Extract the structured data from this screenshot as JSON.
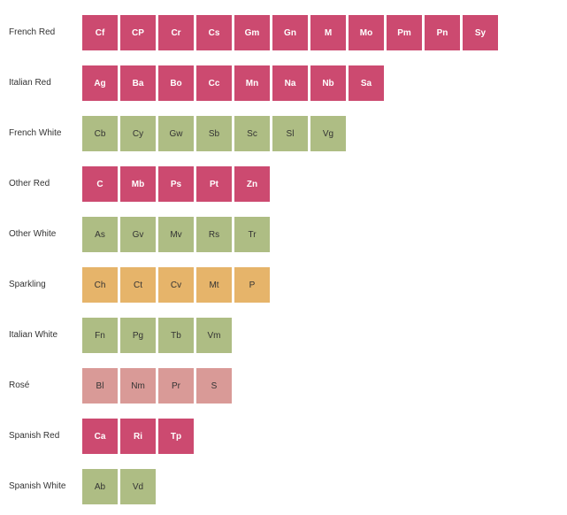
{
  "chart_data": {
    "type": "table",
    "rows": [
      {
        "label": "French Red",
        "category": "red",
        "items": [
          "Cf",
          "CP",
          "Cr",
          "Cs",
          "Gm",
          "Gn",
          "M",
          "Mo",
          "Pm",
          "Pn",
          "Sy"
        ]
      },
      {
        "label": "Italian Red",
        "category": "red",
        "items": [
          "Ag",
          "Ba",
          "Bo",
          "Cc",
          "Mn",
          "Na",
          "Nb",
          "Sa"
        ]
      },
      {
        "label": "French White",
        "category": "white",
        "items": [
          "Cb",
          "Cy",
          "Gw",
          "Sb",
          "Sc",
          "Sl",
          "Vg"
        ]
      },
      {
        "label": "Other Red",
        "category": "red",
        "items": [
          "C",
          "Mb",
          "Ps",
          "Pt",
          "Zn"
        ]
      },
      {
        "label": "Other White",
        "category": "white",
        "items": [
          "As",
          "Gv",
          "Mv",
          "Rs",
          "Tr"
        ]
      },
      {
        "label": "Sparkling",
        "category": "sparkling",
        "items": [
          "Ch",
          "Ct",
          "Cv",
          "Mt",
          "P"
        ]
      },
      {
        "label": "Italian White",
        "category": "white",
        "items": [
          "Fn",
          "Pg",
          "Tb",
          "Vm"
        ]
      },
      {
        "label": "Rosé",
        "category": "rose",
        "items": [
          "Bl",
          "Nm",
          "Pr",
          "S"
        ]
      },
      {
        "label": "Spanish Red",
        "category": "red",
        "items": [
          "Ca",
          "Ri",
          "Tp"
        ]
      },
      {
        "label": "Spanish White",
        "category": "white",
        "items": [
          "Ab",
          "Vd"
        ]
      }
    ],
    "colors": {
      "red": "#cc4a70",
      "white": "#aebd84",
      "sparkling": "#e6b46a",
      "rose": "#d99a97"
    },
    "text_colors": {
      "red": "#ffffff",
      "white": "#333333",
      "sparkling": "#333333",
      "rose": "#333333"
    }
  }
}
